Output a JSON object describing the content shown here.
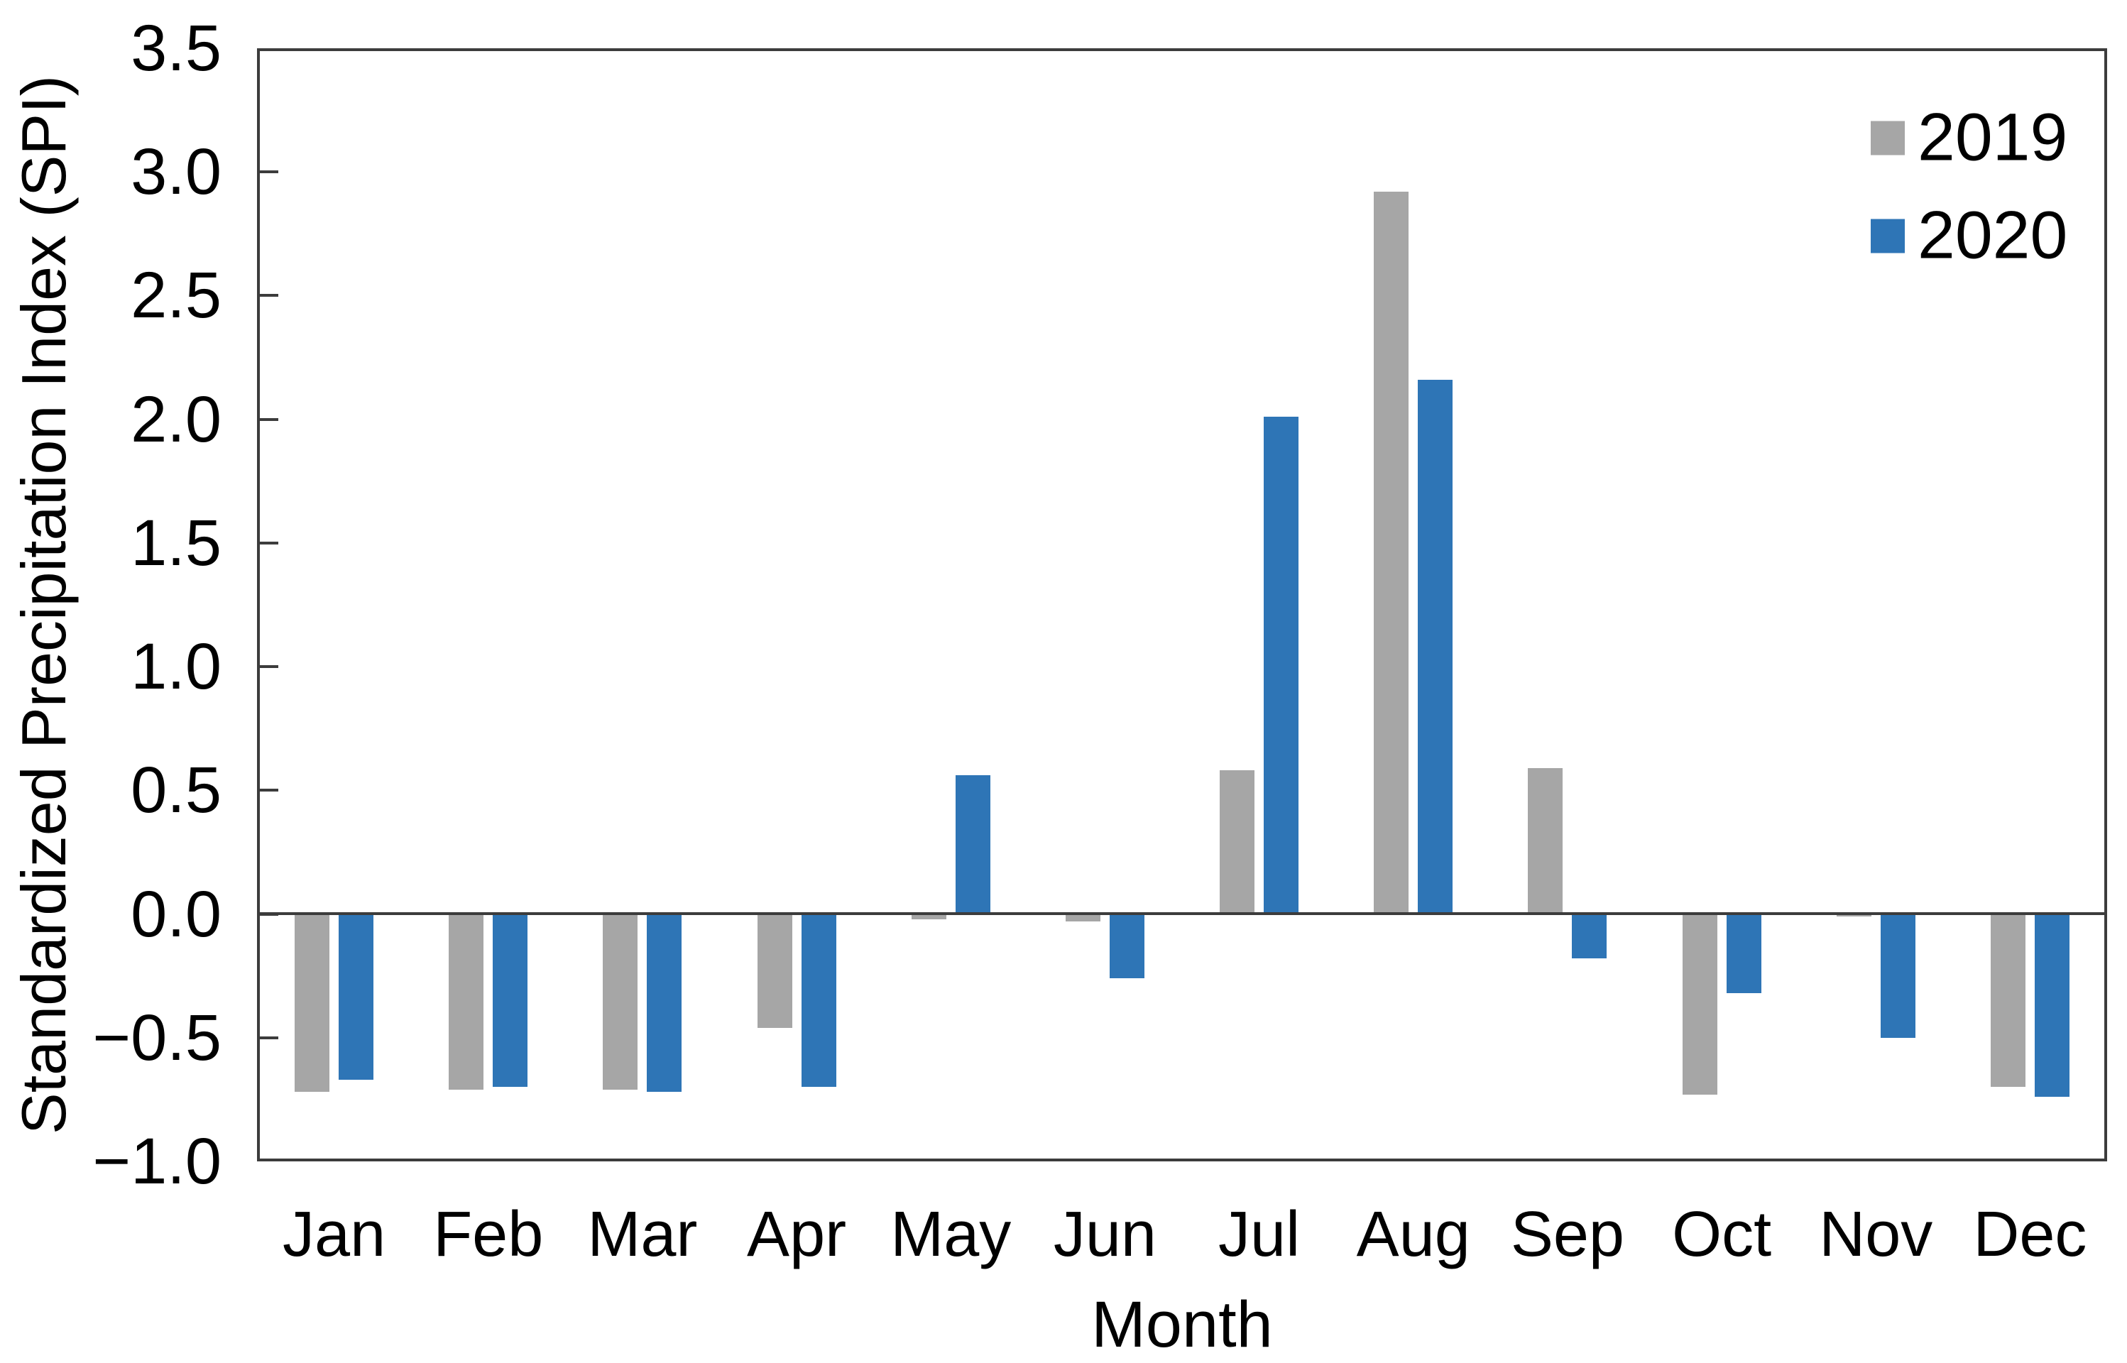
{
  "chart_data": {
    "type": "bar",
    "title": "",
    "xlabel": "Month",
    "ylabel": "Standardized Precipitation Index (SPI)",
    "categories": [
      "Jan",
      "Feb",
      "Mar",
      "Apr",
      "May",
      "Jun",
      "Jul",
      "Aug",
      "Sep",
      "Oct",
      "Nov",
      "Dec"
    ],
    "series": [
      {
        "name": "2019",
        "color": "#a6a6a6",
        "values": [
          -0.72,
          -0.71,
          -0.71,
          -0.46,
          -0.02,
          -0.03,
          0.58,
          2.92,
          0.59,
          -0.73,
          -0.01,
          -0.7
        ]
      },
      {
        "name": "2020",
        "color": "#2e75b6",
        "values": [
          -0.67,
          -0.7,
          -0.72,
          -0.7,
          0.56,
          -0.26,
          2.01,
          2.16,
          -0.18,
          -0.32,
          -0.5,
          -0.74
        ]
      }
    ],
    "ylim": [
      -1.0,
      3.5
    ],
    "ytick_step": 0.5,
    "ytick_labels": [
      "3.5",
      "3.0",
      "2.5",
      "2.0",
      "1.5",
      "1.0",
      "0.5",
      "0.0",
      "−0.5",
      "−1.0"
    ],
    "grid": false,
    "legend_position": "top-right"
  },
  "legend": {
    "items": [
      {
        "label": "2019",
        "color": "#a6a6a6"
      },
      {
        "label": "2020",
        "color": "#2e75b6"
      }
    ]
  },
  "colors": {
    "axis": "#3c3c3c",
    "text": "#000000",
    "background": "#ffffff",
    "bar_2019": "#a6a6a6",
    "bar_2020": "#2e75b6"
  }
}
